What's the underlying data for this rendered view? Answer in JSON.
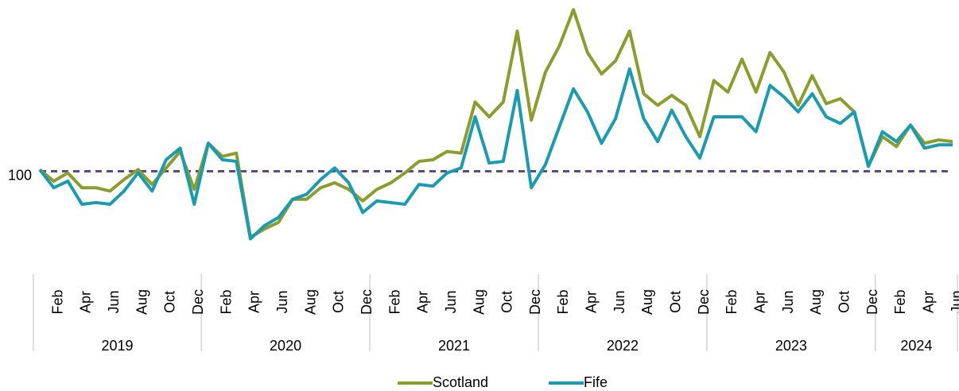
{
  "chart_data": {
    "type": "line",
    "categories": [
      null,
      "Feb",
      null,
      "Apr",
      null,
      "Jun",
      null,
      "Aug",
      null,
      "Oct",
      null,
      "Dec",
      null,
      "Feb",
      null,
      "Apr",
      null,
      "Jun",
      null,
      "Aug",
      null,
      "Oct",
      null,
      "Dec",
      null,
      "Feb",
      null,
      "Apr",
      null,
      "Jun",
      null,
      "Aug",
      null,
      "Oct",
      null,
      "Dec",
      null,
      "Feb",
      null,
      "Apr",
      null,
      "Jun",
      null,
      "Aug",
      null,
      "Oct",
      null,
      "Dec",
      null,
      "Feb",
      null,
      "Apr",
      null,
      "Jun",
      null,
      "Aug",
      null,
      "Oct",
      null,
      "Dec",
      null,
      "Feb",
      null,
      "Apr",
      null,
      "Jun"
    ],
    "year_groups": [
      "2019",
      "2020",
      "2021",
      "2022",
      "2023",
      "2024"
    ],
    "series": [
      {
        "name": "Scotland",
        "color": "#8c9d2d",
        "values": [
          101,
          94,
          99,
          90,
          90,
          88,
          95,
          101,
          92,
          102,
          112,
          89,
          117,
          109,
          111,
          60,
          65,
          69,
          83,
          83,
          90,
          93,
          89,
          82,
          89,
          93,
          99,
          106,
          107,
          112,
          111,
          142,
          133,
          142,
          185,
          131,
          160,
          176,
          198,
          172,
          159,
          167,
          185,
          147,
          140,
          146,
          140,
          121,
          155,
          148,
          168,
          148,
          172,
          160,
          140,
          158,
          141,
          144,
          136,
          103,
          121,
          115,
          128,
          117,
          119,
          118
        ]
      },
      {
        "name": "Fife",
        "color": "#1a9cb0",
        "values": [
          101,
          90,
          94,
          80,
          81,
          80,
          88,
          99,
          88,
          107,
          114,
          80,
          117,
          107,
          106,
          59,
          67,
          72,
          83,
          86,
          95,
          102,
          93,
          75,
          82,
          81,
          80,
          92,
          91,
          99,
          102,
          133,
          105,
          106,
          149,
          90,
          104,
          127,
          150,
          136,
          117,
          132,
          162,
          132,
          118,
          137,
          121,
          108,
          133,
          133,
          133,
          124,
          152,
          145,
          136,
          147,
          133,
          129,
          136,
          103,
          124,
          118,
          128,
          114,
          116,
          116
        ]
      }
    ],
    "ylim": [
      40,
      200
    ],
    "yticks": [
      100
    ],
    "reference_line_color": "#5b4a8a"
  }
}
